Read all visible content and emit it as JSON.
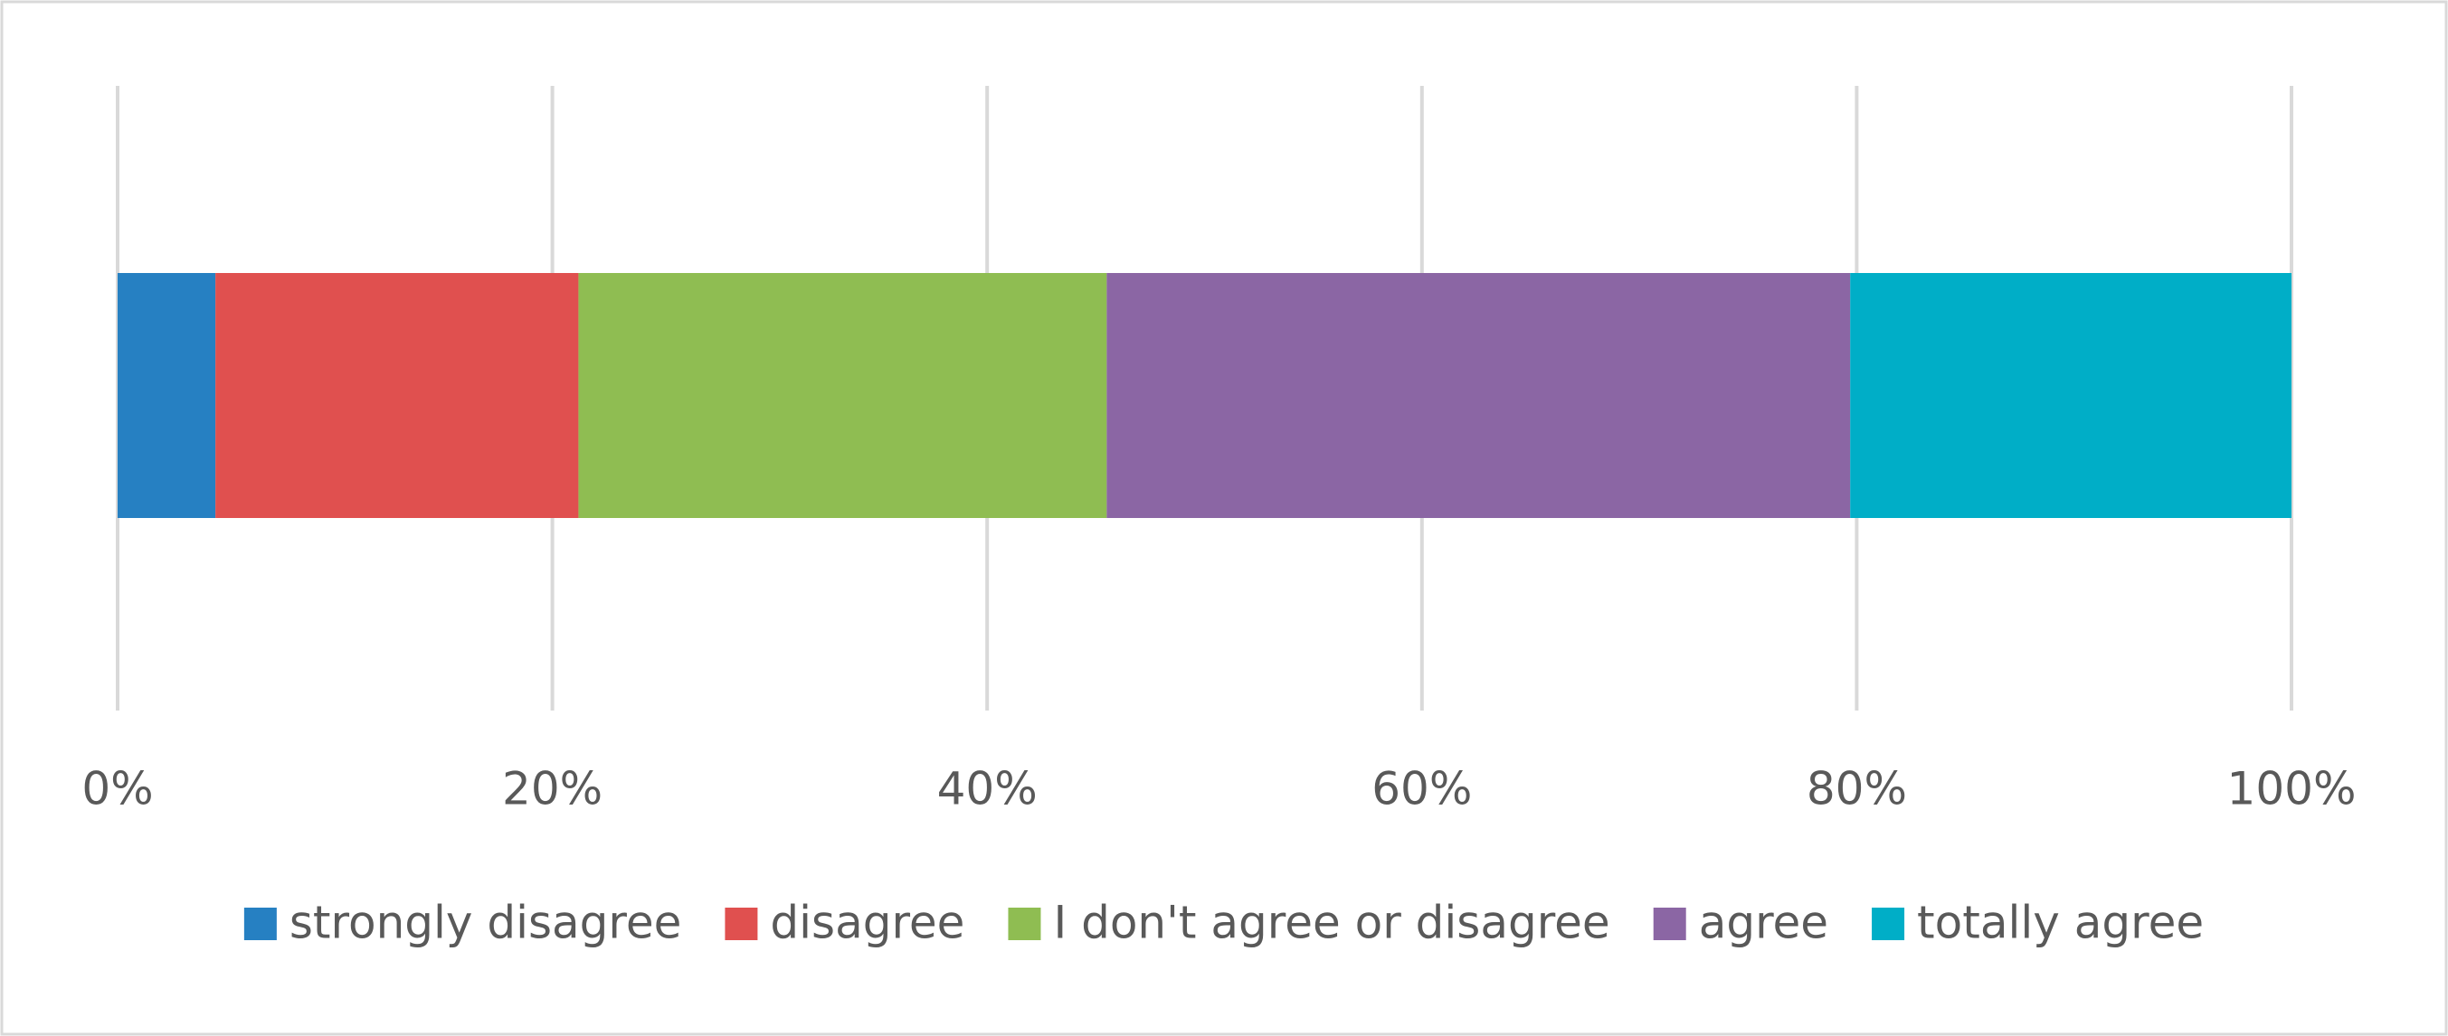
{
  "chart_data": {
    "type": "stacked-bar-horizontal",
    "series": [
      {
        "name": "strongly disagree",
        "color": "#2680c2",
        "values": [
          4.5
        ]
      },
      {
        "name": "disagree",
        "color": "#e0504f",
        "values": [
          16.7
        ]
      },
      {
        "name": "I don't agree or disagree",
        "color": "#8fbd52",
        "values": [
          24.3
        ]
      },
      {
        "name": "agree",
        "color": "#8b66a4",
        "values": [
          34.2
        ]
      },
      {
        "name": "totally agree",
        "color": "#00aec7",
        "values": [
          20.3
        ]
      }
    ],
    "xlim": [
      0,
      100
    ],
    "xticks": [
      {
        "value": 0,
        "label": "0%"
      },
      {
        "value": 20,
        "label": "20%"
      },
      {
        "value": 40,
        "label": "40%"
      },
      {
        "value": 60,
        "label": "60%"
      },
      {
        "value": 80,
        "label": "80%"
      },
      {
        "value": 100,
        "label": "100%"
      }
    ],
    "grid": true,
    "legend": "bottom"
  }
}
